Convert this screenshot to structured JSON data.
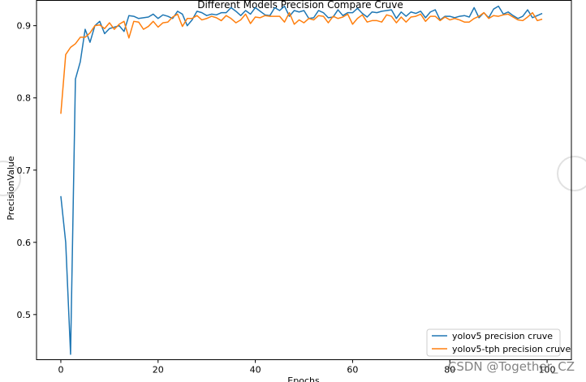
{
  "chart_data": {
    "type": "line",
    "title": "Different Models Precision Compare Cruve",
    "xlabel": "Epochs",
    "ylabel": "PrecisionValue",
    "xlim": [
      -5,
      105
    ],
    "ylim": [
      0.4375,
      0.935
    ],
    "xticks": [
      0,
      20,
      40,
      60,
      80,
      100
    ],
    "yticks": [
      0.5,
      0.6,
      0.7,
      0.8,
      0.9
    ],
    "legend_position": "lower-right",
    "grid": false,
    "series": [
      {
        "name": "yolov5 precision cruve",
        "color": "#1f77b4",
        "x": [
          0,
          1,
          2,
          3,
          4,
          5,
          6,
          7,
          8,
          9,
          10,
          11,
          12,
          13,
          14,
          15,
          16,
          17,
          18,
          19,
          20,
          21,
          22,
          23,
          24,
          25,
          26,
          27,
          28,
          29,
          30,
          31,
          32,
          33,
          34,
          35,
          36,
          37,
          38,
          39,
          40,
          41,
          42,
          43,
          44,
          45,
          46,
          47,
          48,
          49,
          50,
          51,
          52,
          53,
          54,
          55,
          56,
          57,
          58,
          59,
          60,
          61,
          62,
          63,
          64,
          65,
          66,
          67,
          68,
          69,
          70,
          71,
          72,
          73,
          74,
          75,
          76,
          77,
          78,
          79,
          80,
          81,
          82,
          83,
          84,
          85,
          86,
          87,
          88,
          89,
          90,
          91,
          92,
          93,
          94,
          95,
          96,
          97,
          98,
          99
        ],
        "values": [
          0.664,
          0.6,
          0.445,
          0.826,
          0.85,
          0.895,
          0.877,
          0.9,
          0.906,
          0.889,
          0.896,
          0.898,
          0.9,
          0.892,
          0.914,
          0.913,
          0.91,
          0.911,
          0.912,
          0.916,
          0.91,
          0.915,
          0.913,
          0.91,
          0.92,
          0.916,
          0.9,
          0.908,
          0.92,
          0.918,
          0.914,
          0.916,
          0.915,
          0.918,
          0.918,
          0.925,
          0.92,
          0.914,
          0.921,
          0.916,
          0.925,
          0.92,
          0.915,
          0.914,
          0.925,
          0.921,
          0.927,
          0.913,
          0.921,
          0.919,
          0.921,
          0.91,
          0.911,
          0.921,
          0.918,
          0.911,
          0.912,
          0.922,
          0.914,
          0.918,
          0.918,
          0.924,
          0.917,
          0.912,
          0.919,
          0.918,
          0.92,
          0.921,
          0.922,
          0.91,
          0.919,
          0.913,
          0.919,
          0.917,
          0.92,
          0.911,
          0.919,
          0.922,
          0.908,
          0.913,
          0.913,
          0.911,
          0.913,
          0.914,
          0.912,
          0.925,
          0.911,
          0.918,
          0.911,
          0.923,
          0.927,
          0.916,
          0.919,
          0.914,
          0.91,
          0.913,
          0.922,
          0.911,
          0.914,
          0.917
        ]
      },
      {
        "name": "yolov5-tph precision cruve",
        "color": "#ff7f0e",
        "x": [
          0,
          1,
          2,
          3,
          4,
          5,
          6,
          7,
          8,
          9,
          10,
          11,
          12,
          13,
          14,
          15,
          16,
          17,
          18,
          19,
          20,
          21,
          22,
          23,
          24,
          25,
          26,
          27,
          28,
          29,
          30,
          31,
          32,
          33,
          34,
          35,
          36,
          37,
          38,
          39,
          40,
          41,
          42,
          43,
          44,
          45,
          46,
          47,
          48,
          49,
          50,
          51,
          52,
          53,
          54,
          55,
          56,
          57,
          58,
          59,
          60,
          61,
          62,
          63,
          64,
          65,
          66,
          67,
          68,
          69,
          70,
          71,
          72,
          73,
          74,
          75,
          76,
          77,
          78,
          79,
          80,
          81,
          82,
          83,
          84,
          85,
          86,
          87,
          88,
          89,
          90,
          91,
          92,
          93,
          94,
          95,
          96,
          97,
          98,
          99
        ],
        "values": [
          0.778,
          0.86,
          0.87,
          0.875,
          0.884,
          0.884,
          0.89,
          0.9,
          0.901,
          0.896,
          0.904,
          0.895,
          0.902,
          0.906,
          0.883,
          0.906,
          0.905,
          0.895,
          0.899,
          0.906,
          0.898,
          0.904,
          0.905,
          0.912,
          0.916,
          0.899,
          0.91,
          0.91,
          0.914,
          0.908,
          0.91,
          0.913,
          0.911,
          0.907,
          0.914,
          0.91,
          0.904,
          0.908,
          0.916,
          0.903,
          0.912,
          0.911,
          0.914,
          0.913,
          0.913,
          0.913,
          0.905,
          0.918,
          0.902,
          0.908,
          0.904,
          0.91,
          0.908,
          0.914,
          0.913,
          0.904,
          0.913,
          0.91,
          0.912,
          0.916,
          0.902,
          0.91,
          0.915,
          0.905,
          0.907,
          0.907,
          0.905,
          0.915,
          0.913,
          0.904,
          0.912,
          0.905,
          0.912,
          0.913,
          0.916,
          0.906,
          0.913,
          0.913,
          0.907,
          0.912,
          0.908,
          0.91,
          0.908,
          0.905,
          0.905,
          0.91,
          0.913,
          0.918,
          0.91,
          0.914,
          0.913,
          0.915,
          0.916,
          0.912,
          0.908,
          0.907,
          0.912,
          0.918,
          0.907,
          0.909
        ]
      }
    ]
  },
  "watermark": "CSDN @Together_CZ"
}
